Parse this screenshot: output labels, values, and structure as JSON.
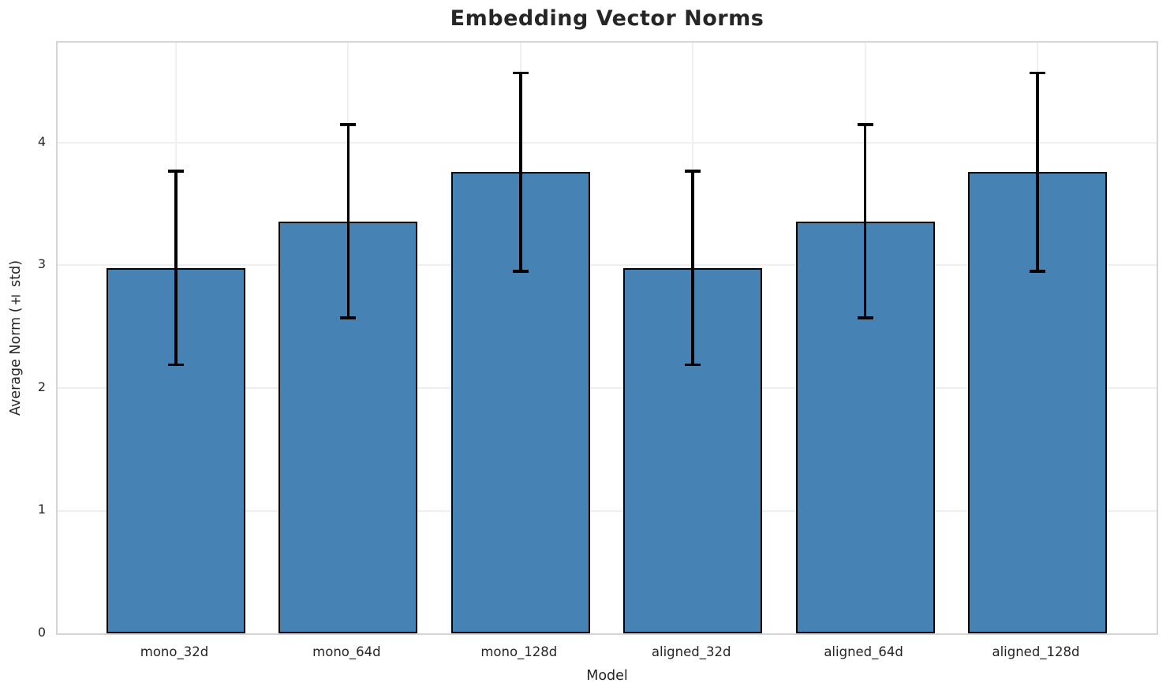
{
  "chart_data": {
    "type": "bar",
    "title": "Embedding Vector Norms",
    "xlabel": "Model",
    "ylabel": "Average Norm (± std)",
    "categories": [
      "mono_32d",
      "mono_64d",
      "mono_128d",
      "aligned_32d",
      "aligned_64d",
      "aligned_128d"
    ],
    "values": [
      2.98,
      3.36,
      3.76,
      2.98,
      3.36,
      3.76
    ],
    "errors": [
      0.8,
      0.8,
      0.82,
      0.8,
      0.8,
      0.82
    ],
    "ylim": [
      0,
      4.81
    ],
    "yticks": [
      0,
      1,
      2,
      3,
      4
    ],
    "grid": "both",
    "legend": "none",
    "colors": {
      "bar_fill": "#4682b4",
      "bar_edge": "#000000",
      "error_bar": "#000000",
      "spine": "#d5d5d5",
      "grid": "#efefef",
      "text": "#262626",
      "background": "#ffffff"
    }
  }
}
